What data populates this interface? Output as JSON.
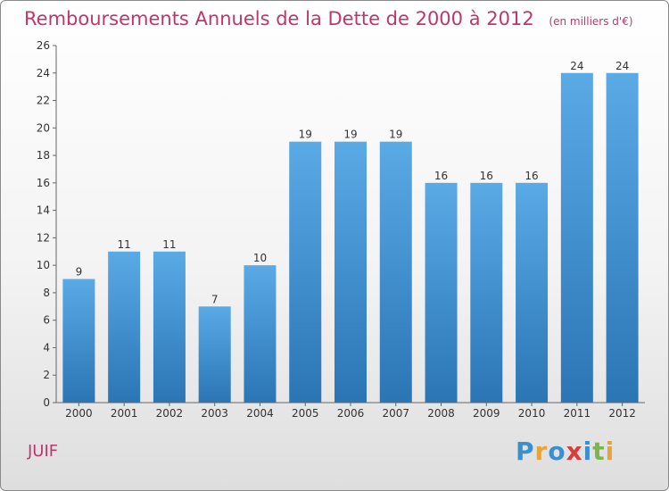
{
  "title": "Remboursements Annuels de la Dette de 2000 à 2012",
  "unit": "(en milliers d'€)",
  "commune": "JUIF",
  "logo_text": "Proxiti",
  "colors": {
    "bar": "#4f9fdc",
    "title": "#c0366a"
  },
  "chart_data": {
    "type": "bar",
    "title": "Remboursements Annuels de la Dette de 2000 à 2012",
    "categories": [
      "2000",
      "2001",
      "2002",
      "2003",
      "2004",
      "2005",
      "2006",
      "2007",
      "2008",
      "2009",
      "2010",
      "2011",
      "2012"
    ],
    "values": [
      9,
      11,
      11,
      7,
      10,
      19,
      19,
      19,
      16,
      16,
      16,
      24,
      24
    ],
    "ylim": [
      0,
      26
    ],
    "yticks": [
      0,
      2,
      4,
      6,
      8,
      10,
      12,
      14,
      16,
      18,
      20,
      22,
      24,
      26
    ],
    "grid": false,
    "data_labels": true
  }
}
